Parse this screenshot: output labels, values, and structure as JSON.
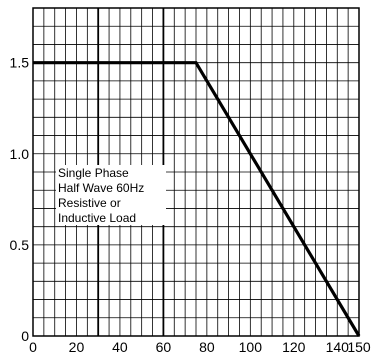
{
  "chart_data": {
    "type": "line",
    "title": "",
    "xlabel": "",
    "ylabel": "",
    "xlim": [
      0,
      150
    ],
    "ylim": [
      0,
      1.8
    ],
    "x_ticks": [
      0,
      20,
      40,
      60,
      80,
      100,
      120,
      140,
      150
    ],
    "x_tick_labels": [
      "0",
      "20",
      "40",
      "60",
      "80",
      "100",
      "120",
      "140",
      "150"
    ],
    "y_ticks": [
      0,
      0.5,
      1.0,
      1.5
    ],
    "y_tick_labels": [
      "0",
      "0.5",
      "1.0",
      "1.5"
    ],
    "x_major_gridlines": [
      30,
      60
    ],
    "grid": true,
    "series": [
      {
        "x": [
          0,
          75,
          150
        ],
        "y": [
          1.5,
          1.5,
          0
        ]
      }
    ],
    "annotation": [
      "Single Phase",
      "Half Wave 60Hz",
      "Resistive or",
      "Inductive Load"
    ],
    "colors": {
      "line": "#000000",
      "grid": "#000000",
      "background": "#ffffff"
    }
  }
}
